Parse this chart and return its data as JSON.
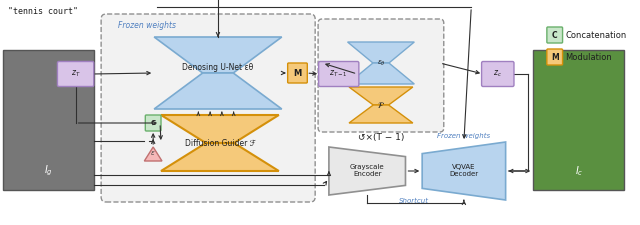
{
  "bg_color": "#ffffff",
  "tennis_text": "\"tennis court\"",
  "frozen_weights_text": "Frozen weights",
  "unet_color": "#b8d4ee",
  "unet_border": "#7aaad0",
  "unet_text": "Denosing U-Net εθ",
  "guider_color": "#f5c97a",
  "guider_border": "#d4900a",
  "guider_text": "Diffusion Guider ℱ",
  "purple_box_color": "#d9c4e8",
  "purple_box_border": "#a080c0",
  "green_box_color": "#c8e6c9",
  "green_box_border": "#6ab06c",
  "orange_box_color": "#f5c97a",
  "orange_box_border": "#d4900a",
  "pink_box_color": "#f5b8b8",
  "pink_box_border": "#c07070",
  "encoder_color": "#e8e8e8",
  "encoder_border": "#909090",
  "decoder_color": "#b8d4ee",
  "decoder_border": "#7aaad0",
  "arrow_color": "#303030",
  "dashed_color": "#909090",
  "frozen_bg": "#f0f0f0",
  "blue_text": "#5080c0",
  "repeat_text": "↺×(T − 1)",
  "shortcut_text": "Shortcut",
  "encoder_text": "Grayscale\nEncoder",
  "decoder_text": "VQVAE\nDecoder",
  "legend_C_text": "Concatenation",
  "legend_M_text": "Modulation",
  "Ig_text": "$I_g$",
  "Ic_text": "$I_c$"
}
